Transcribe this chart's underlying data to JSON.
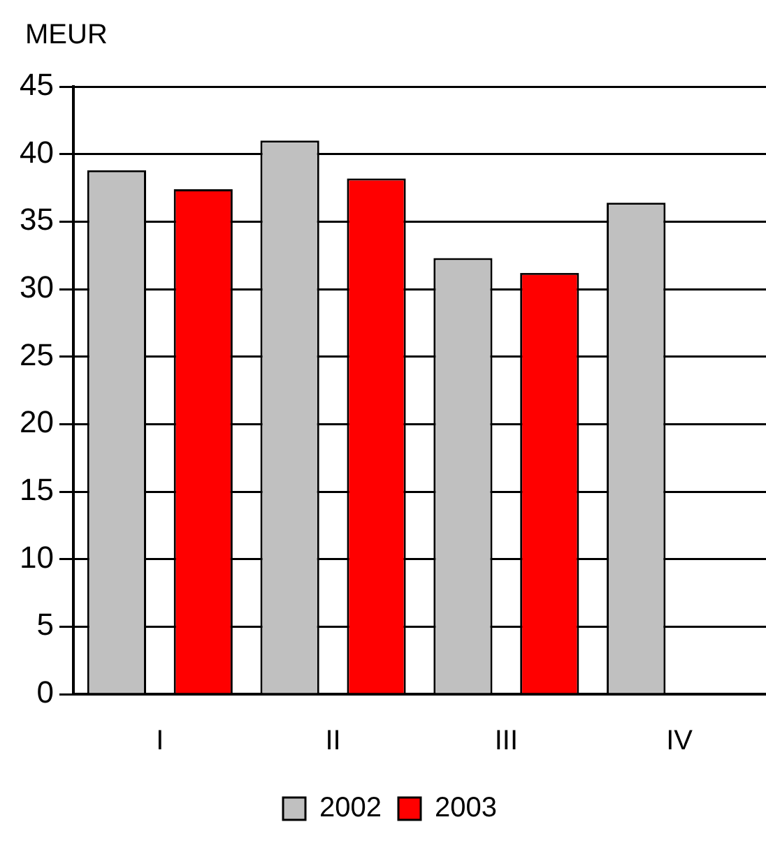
{
  "chart_data": {
    "type": "bar",
    "ylabel": "MEUR",
    "categories": [
      "I",
      "II",
      "III",
      "IV"
    ],
    "series": [
      {
        "name": "2002",
        "color": "#c0c0c0",
        "values": [
          38.8,
          41.0,
          32.3,
          36.4
        ]
      },
      {
        "name": "2003",
        "color": "#ff0000",
        "values": [
          37.4,
          38.2,
          31.2,
          null
        ]
      }
    ],
    "ylim": [
      0,
      45
    ],
    "yticks": [
      0,
      5,
      10,
      15,
      20,
      25,
      30,
      35,
      40,
      45
    ],
    "grid": "y",
    "legend": "bottom"
  }
}
